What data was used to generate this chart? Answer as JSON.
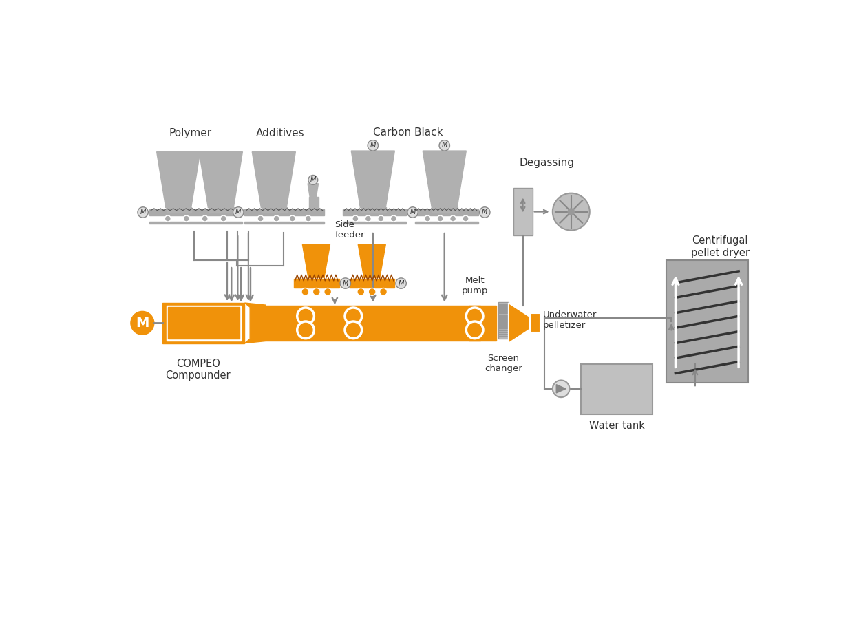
{
  "bg_color": "#ffffff",
  "orange": "#F0920A",
  "gray_hopper": "#AAAAAA",
  "gray_conveyor": "#AAAAAA",
  "gray_dryer": "#AAAAAA",
  "gray_tank": "#B8B8B8",
  "gray_screen": "#BBBBBB",
  "gray_line": "#999999",
  "black": "#333333",
  "labels": {
    "polymer": "Polymer",
    "additives": "Additives",
    "carbon_black": "Carbon Black",
    "degassing": "Degassing",
    "side_feeder": "Side\nfeeder",
    "melt_pump": "Melt\npump",
    "screen_changer": "Screen\nchanger",
    "underwater_pelletizer": "Underwater\npelletizer",
    "centrifugal_dryer": "Centrifugal\npellet dryer",
    "water_tank": "Water tank",
    "compeo": "COMPEO\nCompounder"
  }
}
